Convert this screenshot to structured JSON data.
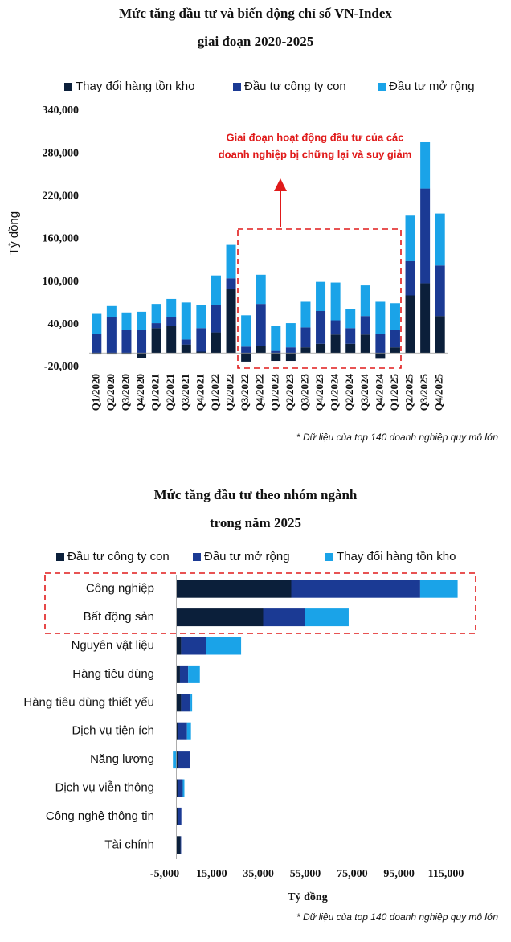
{
  "chart_data": [
    {
      "type": "bar",
      "title": [
        "Mức tăng đầu tư và biến động chỉ số VN-Index",
        "giai đoạn 2020-2025"
      ],
      "y_label": "Tỷ đồng",
      "annotation": [
        "Giai đoạn hoạt động đầu tư của các",
        "doanh nghiệp bị chững lại và suy giảm"
      ],
      "note": "* Dữ liệu của top 140 doanh nghiệp quy mô lớn",
      "categories": [
        "Q1/2020",
        "Q2/2020",
        "Q3/2020",
        "Q4/2020",
        "Q1/2021",
        "Q2/2021",
        "Q3/2021",
        "Q4/2021",
        "Q1/2022",
        "Q2/2022",
        "Q3/2022",
        "Q4/2022",
        "Q1/2023",
        "Q2/2023",
        "Q3/2023",
        "Q4/2023",
        "Q1/2024",
        "Q2/2024",
        "Q3/2024",
        "Q4/2024",
        "Q1/2025",
        "Q2/2025",
        "Q3/2025",
        "Q4/2025"
      ],
      "series": [
        {
          "name": "Thay đổi hàng tồn kho",
          "color": "#0b1f3a",
          "values": [
            -2000,
            -2000,
            -2000,
            -7000,
            35000,
            38000,
            12000,
            2000,
            29000,
            90000,
            -12000,
            10000,
            -11000,
            -11000,
            8000,
            13000,
            26000,
            13000,
            26000,
            -8000,
            8000,
            81000,
            98000,
            52000
          ]
        },
        {
          "name": "Đầu tư công ty con",
          "color": "#1b3a94",
          "values": [
            27000,
            50000,
            33000,
            33000,
            7000,
            12000,
            7000,
            33000,
            38000,
            15000,
            9000,
            59000,
            3000,
            8000,
            28000,
            46000,
            20000,
            22000,
            26000,
            27000,
            25000,
            48000,
            133000,
            71000
          ]
        },
        {
          "name": "Đầu tư mở rộng",
          "color": "#1aa3e8",
          "values": [
            28000,
            16000,
            24000,
            25000,
            27000,
            26000,
            52000,
            32000,
            42000,
            47000,
            44000,
            41000,
            35000,
            34000,
            36000,
            41000,
            53000,
            27000,
            43000,
            45000,
            37000,
            64000,
            65000,
            73000
          ]
        }
      ],
      "ylim": [
        -20000,
        340000
      ],
      "yticks": [
        {
          "value": -20000,
          "label": "-20,000"
        },
        {
          "value": 40000,
          "label": "40,000"
        },
        {
          "value": 100000,
          "label": "100,000"
        },
        {
          "value": 160000,
          "label": "160,000"
        },
        {
          "value": 220000,
          "label": "220,000"
        },
        {
          "value": 280000,
          "label": "280,000"
        },
        {
          "value": 340000,
          "label": "340,000"
        }
      ],
      "grid": false
    },
    {
      "type": "barh",
      "title": [
        "Mức tăng đầu tư theo nhóm ngành",
        "trong năm 2025"
      ],
      "x_label": "Tỷ đồng",
      "note": "* Dữ liệu của top 140 doanh nghiệp quy mô lớn",
      "categories": [
        "Công nghiệp",
        "Bất động sản",
        "Nguyên vật liệu",
        "Hàng tiêu dùng",
        "Hàng tiêu dùng thiết yếu",
        "Dịch vụ tiện ích",
        "Năng lượng",
        "Dịch vụ viễn thông",
        "Công nghệ thông tin",
        "Tài chính"
      ],
      "series": [
        {
          "name": "Đầu tư công ty con",
          "color": "#0b1f3a",
          "values": [
            49000,
            37000,
            2000,
            1500,
            2000,
            700,
            700,
            700,
            700,
            1700
          ]
        },
        {
          "name": "Đầu tư mở rộng",
          "color": "#1b3a94",
          "values": [
            55000,
            18000,
            10600,
            3500,
            4000,
            3800,
            5000,
            2000,
            1400,
            300
          ]
        },
        {
          "name": "Thay đổi hàng tồn kho",
          "color": "#1aa3e8",
          "values": [
            16000,
            18500,
            15000,
            5000,
            700,
            1700,
            -1500,
            700,
            0,
            0
          ]
        }
      ],
      "xlim": [
        -5000,
        115000
      ],
      "xticks": [
        {
          "value": -5000,
          "label": "-5,000"
        },
        {
          "value": 15000,
          "label": "15,000"
        },
        {
          "value": 35000,
          "label": "35,000"
        },
        {
          "value": 55000,
          "label": "55,000"
        },
        {
          "value": 75000,
          "label": "75,000"
        },
        {
          "value": 95000,
          "label": "95,000"
        },
        {
          "value": 115000,
          "label": "115,000"
        }
      ],
      "grid": false
    }
  ]
}
